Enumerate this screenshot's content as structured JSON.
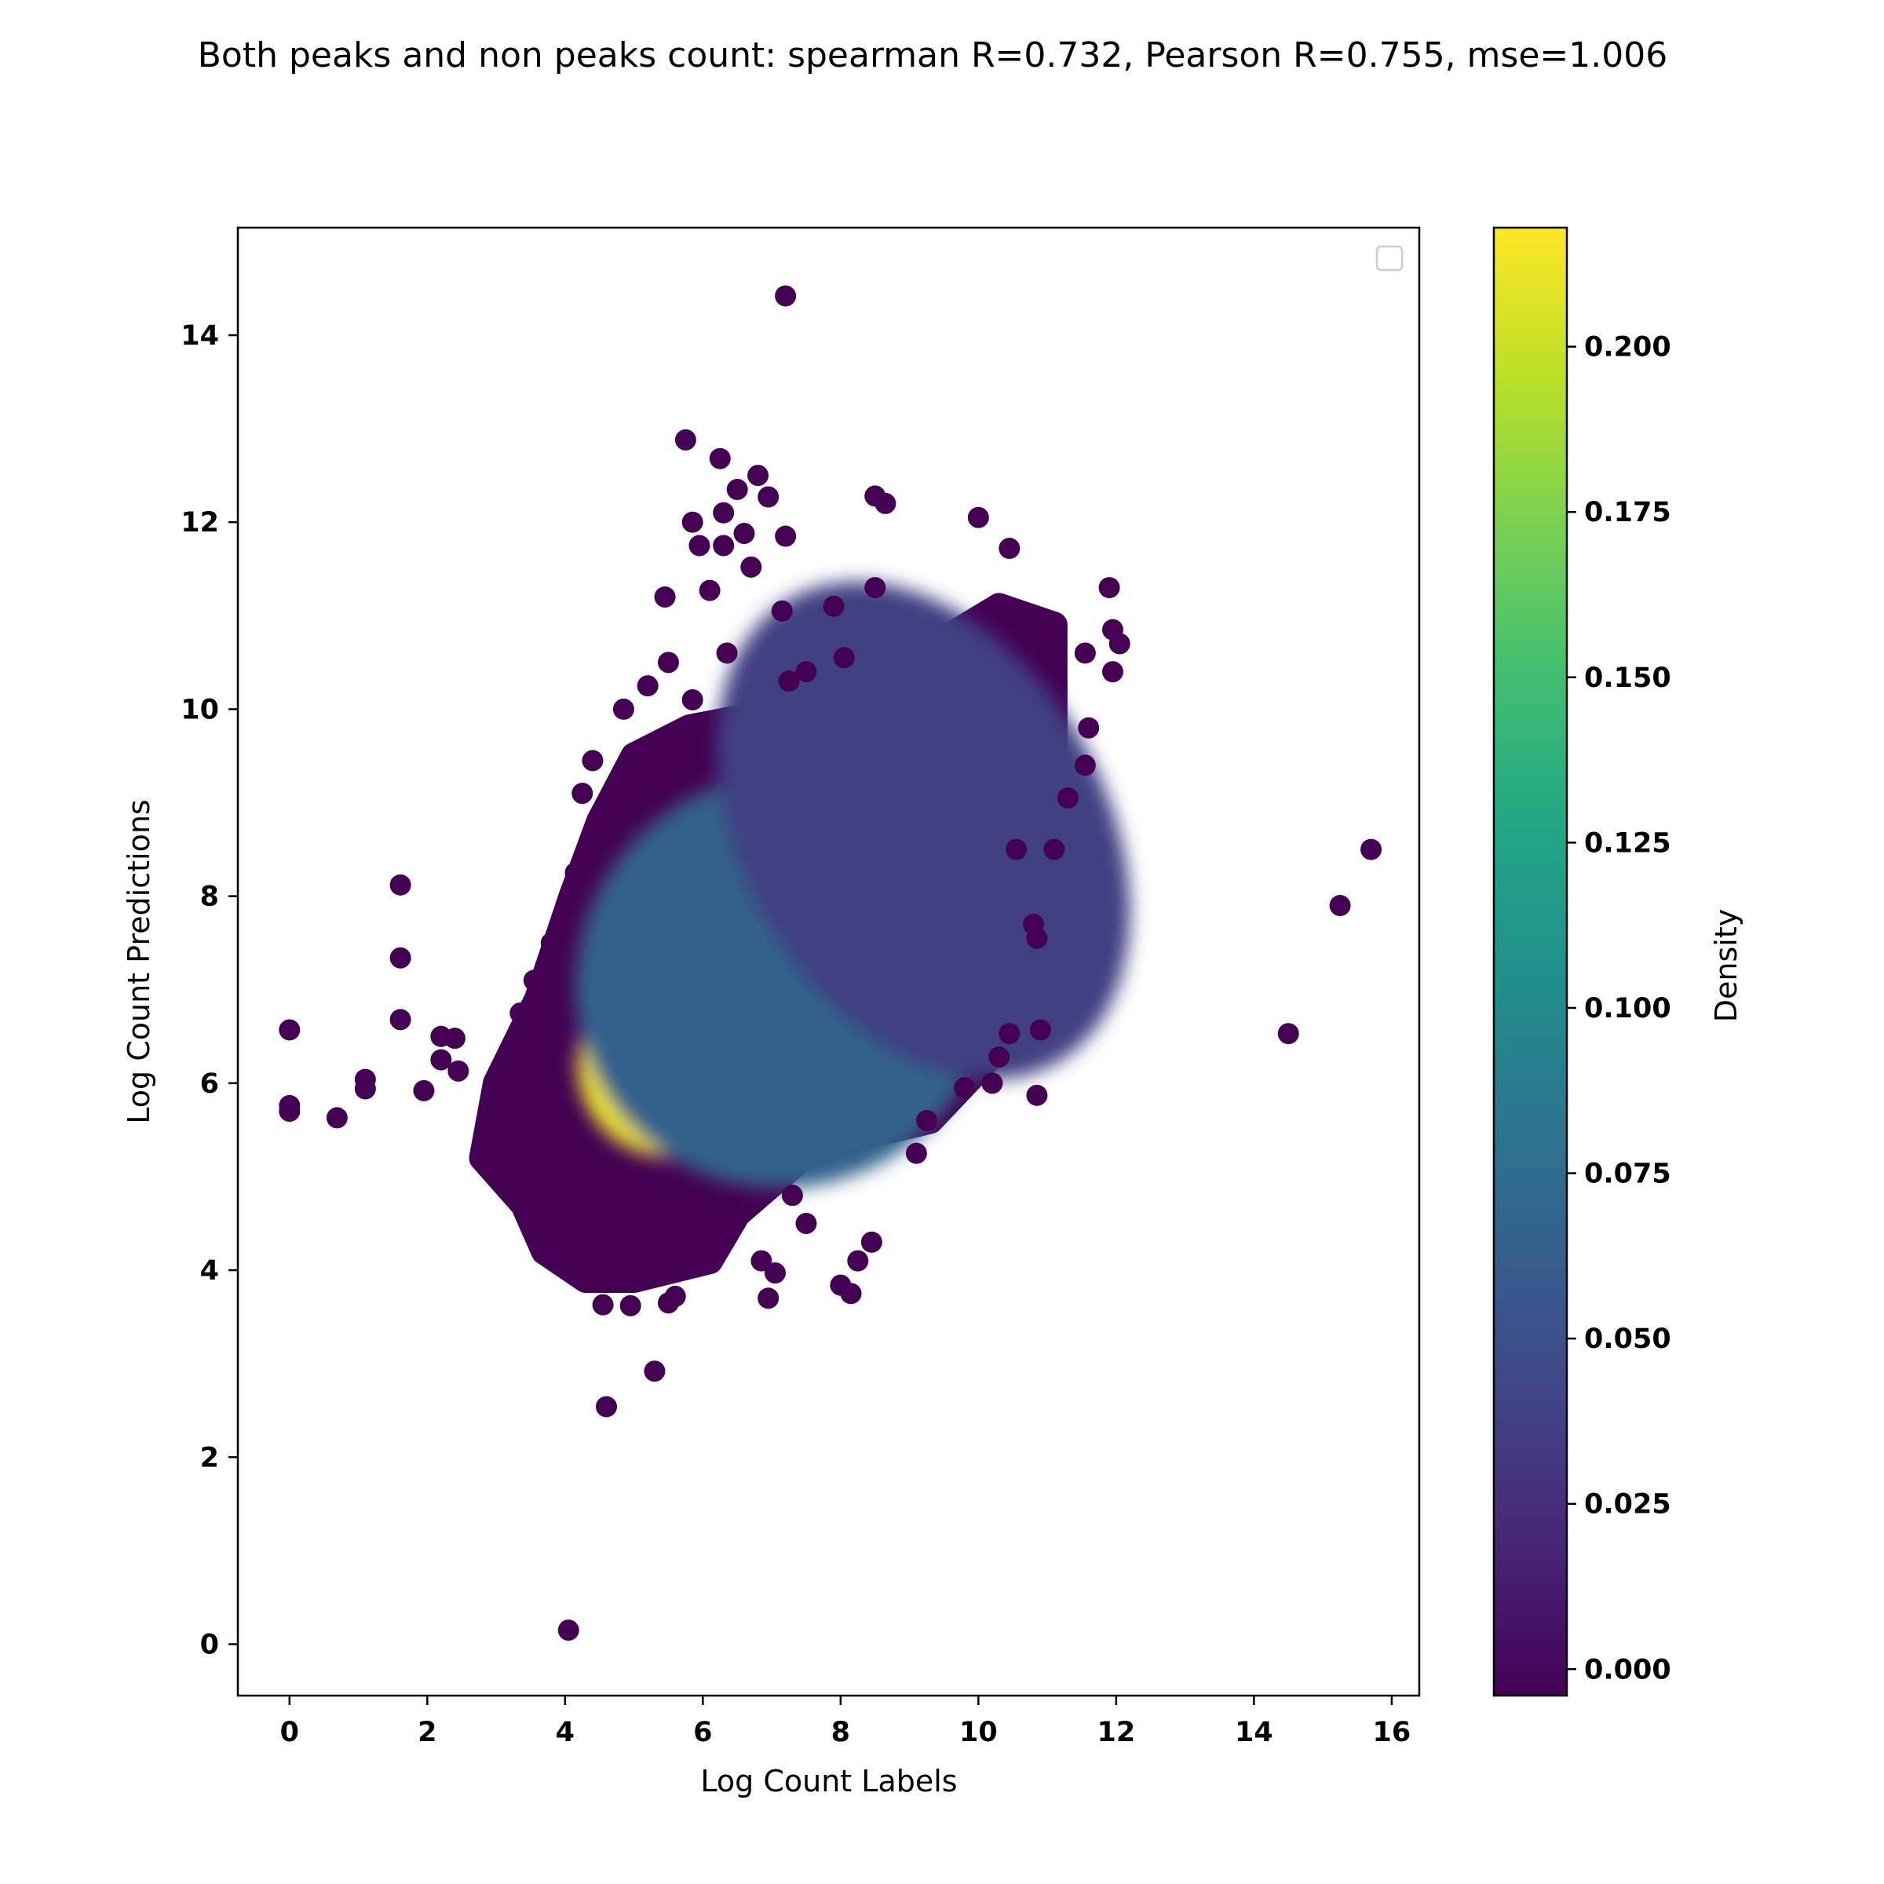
{
  "chart_data": {
    "type": "scatter",
    "title": "Both peaks and non peaks count: spearman R=0.732, Pearson R=0.755, mse=1.006",
    "xlabel": "Log Count Labels",
    "ylabel": "Log Count Predictions",
    "xlim": [
      -0.75,
      16.4
    ],
    "ylim": [
      -0.55,
      15.15
    ],
    "x_ticks": [
      "0",
      "2",
      "4",
      "6",
      "8",
      "10",
      "12",
      "14",
      "16"
    ],
    "y_ticks": [
      "0",
      "2",
      "4",
      "6",
      "8",
      "10",
      "12",
      "14"
    ],
    "legend": {
      "placement": "upper-right",
      "entries": []
    },
    "grid": false,
    "colorbar": {
      "label": "Density",
      "range": [
        -0.004,
        0.218
      ],
      "colormap": "viridis",
      "ticks": [
        "0.000",
        "0.025",
        "0.050",
        "0.075",
        "0.100",
        "0.125",
        "0.150",
        "0.175",
        "0.200"
      ]
    },
    "density_clusters": [
      {
        "x": 5.5,
        "y": 6.2,
        "sx": 0.6,
        "sy": 0.45,
        "weight": 0.218
      },
      {
        "x": 7.2,
        "y": 7.1,
        "sx": 1.4,
        "sy": 1.0,
        "weight": 0.07
      },
      {
        "x": 9.2,
        "y": 8.7,
        "sx": 1.2,
        "sy": 1.3,
        "weight": 0.04
      }
    ],
    "outliers": [
      {
        "x": 0,
        "y": 6.57
      },
      {
        "x": 0,
        "y": 5.76
      },
      {
        "x": 0,
        "y": 5.7
      },
      {
        "x": 0.69,
        "y": 5.63
      },
      {
        "x": 1.1,
        "y": 6.04
      },
      {
        "x": 1.1,
        "y": 5.94
      },
      {
        "x": 1.61,
        "y": 8.12
      },
      {
        "x": 1.61,
        "y": 7.34
      },
      {
        "x": 1.61,
        "y": 6.68
      },
      {
        "x": 1.95,
        "y": 5.92
      },
      {
        "x": 2.2,
        "y": 6.5
      },
      {
        "x": 2.2,
        "y": 6.25
      },
      {
        "x": 2.4,
        "y": 6.48
      },
      {
        "x": 2.45,
        "y": 6.13
      },
      {
        "x": 4.05,
        "y": 0.15
      },
      {
        "x": 4.6,
        "y": 2.54
      },
      {
        "x": 5.3,
        "y": 2.92
      },
      {
        "x": 4.55,
        "y": 3.63
      },
      {
        "x": 4.95,
        "y": 3.62
      },
      {
        "x": 5.5,
        "y": 3.65
      },
      {
        "x": 5.6,
        "y": 3.72
      },
      {
        "x": 6.95,
        "y": 3.7
      },
      {
        "x": 7.05,
        "y": 3.97
      },
      {
        "x": 8.0,
        "y": 3.84
      },
      {
        "x": 8.15,
        "y": 3.75
      },
      {
        "x": 8.25,
        "y": 4.1
      },
      {
        "x": 8.45,
        "y": 4.3
      },
      {
        "x": 5.75,
        "y": 12.88
      },
      {
        "x": 6.25,
        "y": 12.68
      },
      {
        "x": 6.8,
        "y": 12.5
      },
      {
        "x": 6.5,
        "y": 12.35
      },
      {
        "x": 6.95,
        "y": 12.27
      },
      {
        "x": 6.3,
        "y": 12.1
      },
      {
        "x": 5.85,
        "y": 12.0
      },
      {
        "x": 6.6,
        "y": 11.88
      },
      {
        "x": 5.95,
        "y": 11.75
      },
      {
        "x": 6.3,
        "y": 11.75
      },
      {
        "x": 7.2,
        "y": 11.85
      },
      {
        "x": 6.7,
        "y": 11.52
      },
      {
        "x": 7.2,
        "y": 14.42
      },
      {
        "x": 8.5,
        "y": 12.28
      },
      {
        "x": 8.65,
        "y": 12.2
      },
      {
        "x": 10.0,
        "y": 12.05
      },
      {
        "x": 8.5,
        "y": 11.3
      },
      {
        "x": 7.9,
        "y": 11.1
      },
      {
        "x": 7.15,
        "y": 11.05
      },
      {
        "x": 5.45,
        "y": 11.2
      },
      {
        "x": 6.1,
        "y": 11.27
      },
      {
        "x": 10.45,
        "y": 11.72
      },
      {
        "x": 11.95,
        "y": 10.4
      },
      {
        "x": 12.05,
        "y": 10.7
      },
      {
        "x": 11.9,
        "y": 11.3
      },
      {
        "x": 11.95,
        "y": 10.85
      },
      {
        "x": 11.55,
        "y": 10.6
      },
      {
        "x": 11.6,
        "y": 9.8
      },
      {
        "x": 11.55,
        "y": 9.4
      },
      {
        "x": 11.3,
        "y": 9.05
      },
      {
        "x": 11.1,
        "y": 8.5
      },
      {
        "x": 10.55,
        "y": 8.5
      },
      {
        "x": 10.8,
        "y": 7.7
      },
      {
        "x": 10.85,
        "y": 7.55
      },
      {
        "x": 10.9,
        "y": 6.57
      },
      {
        "x": 10.85,
        "y": 5.87
      },
      {
        "x": 10.45,
        "y": 6.53
      },
      {
        "x": 14.5,
        "y": 6.53
      },
      {
        "x": 15.25,
        "y": 7.9
      },
      {
        "x": 15.7,
        "y": 8.5
      },
      {
        "x": 4.25,
        "y": 9.1
      },
      {
        "x": 4.4,
        "y": 9.45
      },
      {
        "x": 4.15,
        "y": 8.25
      },
      {
        "x": 5.2,
        "y": 10.25
      },
      {
        "x": 4.85,
        "y": 10.0
      },
      {
        "x": 5.5,
        "y": 10.5
      },
      {
        "x": 5.85,
        "y": 10.1
      },
      {
        "x": 6.35,
        "y": 10.6
      },
      {
        "x": 7.25,
        "y": 10.3
      },
      {
        "x": 7.5,
        "y": 10.4
      },
      {
        "x": 8.05,
        "y": 10.55
      },
      {
        "x": 3.6,
        "y": 4.6
      },
      {
        "x": 3.3,
        "y": 4.9
      },
      {
        "x": 2.95,
        "y": 5.85
      },
      {
        "x": 2.8,
        "y": 5.2
      },
      {
        "x": 3.35,
        "y": 6.75
      },
      {
        "x": 3.55,
        "y": 7.1
      },
      {
        "x": 3.8,
        "y": 7.5
      },
      {
        "x": 7.3,
        "y": 4.8
      },
      {
        "x": 7.5,
        "y": 4.5
      },
      {
        "x": 6.85,
        "y": 4.1
      },
      {
        "x": 9.1,
        "y": 5.25
      },
      {
        "x": 9.25,
        "y": 5.6
      },
      {
        "x": 9.8,
        "y": 5.95
      },
      {
        "x": 10.2,
        "y": 6.0
      },
      {
        "x": 10.3,
        "y": 6.28
      }
    ]
  }
}
